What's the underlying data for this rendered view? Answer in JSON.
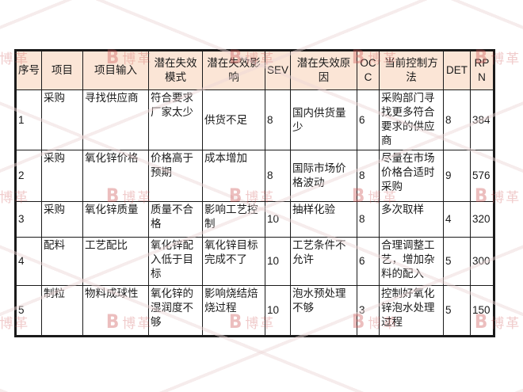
{
  "styles": {
    "header_bg": "#fbe5d6",
    "border_color": "#1a1a1a",
    "watermark_color": "#ce5454"
  },
  "watermark": {
    "logo_letter": "B",
    "text": "博革"
  },
  "table": {
    "columns": [
      {
        "key": "sn",
        "label": "序号"
      },
      {
        "key": "item",
        "label": "项目"
      },
      {
        "key": "input",
        "label": "项目输入"
      },
      {
        "key": "mode",
        "label": "潜在失效模式"
      },
      {
        "key": "effect",
        "label": "潜在失效影响"
      },
      {
        "key": "sev",
        "label": "SEV"
      },
      {
        "key": "cause",
        "label": "潜在失效原因"
      },
      {
        "key": "occ",
        "label": "OCC"
      },
      {
        "key": "control",
        "label": "当前控制方法"
      },
      {
        "key": "det",
        "label": "DET"
      },
      {
        "key": "rpn",
        "label": "RPN"
      }
    ],
    "rows": [
      {
        "sn": "1",
        "item": "采购",
        "input": "寻找供应商",
        "mode": "符合要求厂家太少",
        "effect": "供货不足",
        "sev": "8",
        "cause": "国内供货量少",
        "occ": "6",
        "control": "采购部门寻找更多符合要求的供应商",
        "det": "8",
        "rpn": "384"
      },
      {
        "sn": "2",
        "item": "采购",
        "input": "氧化锌价格",
        "mode": "价格高于预期",
        "effect": "成本增加",
        "sev": "8",
        "cause": "国际市场价格波动",
        "occ": "8",
        "control": "尽量在市场价格合适时采购",
        "det": "9",
        "rpn": "576"
      },
      {
        "sn": "3",
        "item": "采购",
        "input": "氧化锌质量",
        "mode": "质量不合格",
        "effect": "影响工艺控制",
        "sev": "10",
        "cause": "抽样化验",
        "occ": "8",
        "control": "多次取样",
        "det": "4",
        "rpn": "320"
      },
      {
        "sn": "4",
        "item": "配料",
        "input": "工艺配比",
        "mode": "氧化锌配入低于目标",
        "effect": "氧化锌目标完成不了",
        "sev": "10",
        "cause": "工艺条件不允许",
        "occ": "6",
        "control": "合理调整工艺，增加杂料的配入",
        "det": "5",
        "rpn": "300"
      },
      {
        "sn": "5",
        "item": "制粒",
        "input": "物料成球性",
        "mode": "氧化锌的湿润度不够",
        "effect": "影响烧结焙烧过程",
        "sev": "10",
        "cause": "泡水预处理不够",
        "occ": "3",
        "control": "控制好氧化锌泡水处理过程",
        "det": "5",
        "rpn": "150"
      }
    ]
  }
}
